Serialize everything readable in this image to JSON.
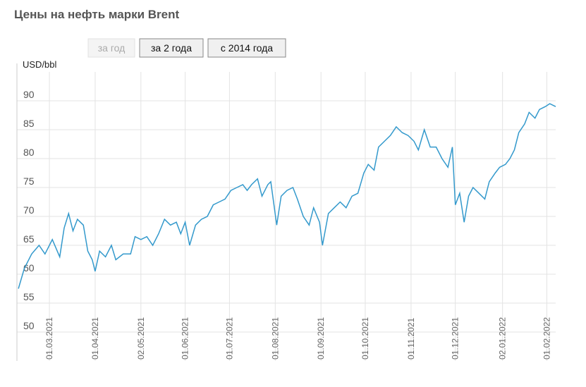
{
  "chart_data": {
    "type": "line",
    "title": "Цены на нефть марки Brent",
    "controls": [
      "за год",
      "за 2 года",
      "с 2014 года"
    ],
    "y_label": "USD/bbl",
    "x": [
      "08.02.2021",
      "12.02.2021",
      "17.02.2021",
      "22.02.2021",
      "26.02.2021",
      "03.03.2021",
      "08.03.2021",
      "11.03.2021",
      "14.03.2021",
      "17.03.2021",
      "20.03.2021",
      "24.03.2021",
      "27.03.2021",
      "30.03.2021",
      "01.04.2021",
      "04.04.2021",
      "08.04.2021",
      "12.04.2021",
      "15.04.2021",
      "20.04.2021",
      "25.04.2021",
      "28.04.2021",
      "02.05.2021",
      "06.05.2021",
      "10.05.2021",
      "14.05.2021",
      "18.05.2021",
      "22.05.2021",
      "26.05.2021",
      "29.05.2021",
      "01.06.2021",
      "04.06.2021",
      "08.06.2021",
      "12.06.2021",
      "16.06.2021",
      "20.06.2021",
      "24.06.2021",
      "28.06.2021",
      "02.07.2021",
      "06.07.2021",
      "10.07.2021",
      "13.07.2021",
      "16.07.2021",
      "20.07.2021",
      "23.07.2021",
      "27.07.2021",
      "29.07.2021",
      "02.08.2021",
      "05.08.2021",
      "09.08.2021",
      "13.08.2021",
      "16.08.2021",
      "20.08.2021",
      "24.08.2021",
      "27.08.2021",
      "31.08.2021",
      "02.09.2021",
      "06.09.2021",
      "10.09.2021",
      "14.09.2021",
      "18.09.2021",
      "22.09.2021",
      "26.09.2021",
      "30.09.2021",
      "03.10.2021",
      "07.10.2021",
      "10.10.2021",
      "14.10.2021",
      "18.10.2021",
      "22.10.2021",
      "26.10.2021",
      "30.10.2021",
      "03.11.2021",
      "06.11.2021",
      "10.11.2021",
      "14.11.2021",
      "18.11.2021",
      "22.11.2021",
      "26.11.2021",
      "29.11.2021",
      "01.12.2021",
      "04.12.2021",
      "07.12.2021",
      "10.12.2021",
      "13.12.2021",
      "17.12.2021",
      "21.12.2021",
      "24.12.2021",
      "28.12.2021",
      "31.12.2021",
      "04.01.2022",
      "07.01.2022",
      "10.01.2022",
      "13.01.2022",
      "17.01.2022",
      "20.01.2022",
      "24.01.2022",
      "27.01.2022",
      "31.01.2022",
      "03.02.2022",
      "07.02.2022"
    ],
    "series": [
      {
        "name": "Brent",
        "color": "#3399cc",
        "values": [
          57.5,
          61,
          63.5,
          65,
          63.5,
          66,
          63,
          68,
          70.5,
          67.5,
          69.5,
          68.5,
          64,
          62.5,
          60.5,
          64,
          63,
          65,
          62.5,
          63.5,
          63.5,
          66.5,
          66,
          66.5,
          65,
          67,
          69.5,
          68.5,
          69,
          67,
          69,
          65,
          68.5,
          69.5,
          70,
          72,
          72.5,
          73,
          74.5,
          75,
          75.5,
          74.5,
          75.5,
          76.5,
          73.5,
          75.5,
          76,
          68.5,
          73.5,
          74.5,
          75,
          73,
          70,
          68.5,
          71.5,
          69,
          65,
          70.5,
          71.5,
          72.5,
          71.5,
          73.5,
          74,
          77.5,
          79,
          78,
          82,
          83,
          84,
          85.5,
          84.5,
          84,
          83,
          81.5,
          85,
          82,
          82,
          80,
          78.5,
          82,
          72,
          74,
          69,
          73.5,
          75,
          74,
          73,
          76,
          77.5,
          78.5,
          79,
          80,
          81.5,
          84.5,
          86,
          88,
          87,
          88.5,
          89,
          89.5,
          89
        ]
      }
    ],
    "xlim": [
      "07.02.2021",
      "07.02.2022"
    ],
    "xticks": [
      "01.03.2021",
      "01.04.2021",
      "02.05.2021",
      "01.06.2021",
      "01.07.2021",
      "01.08.2021",
      "01.09.2021",
      "01.10.2021",
      "01.11.2021",
      "01.12.2021",
      "02.01.2022",
      "01.02.2022"
    ],
    "ylim": [
      45,
      95
    ],
    "yticks": [
      50,
      55,
      60,
      65,
      70,
      75,
      80,
      85,
      90
    ],
    "grid": true
  }
}
